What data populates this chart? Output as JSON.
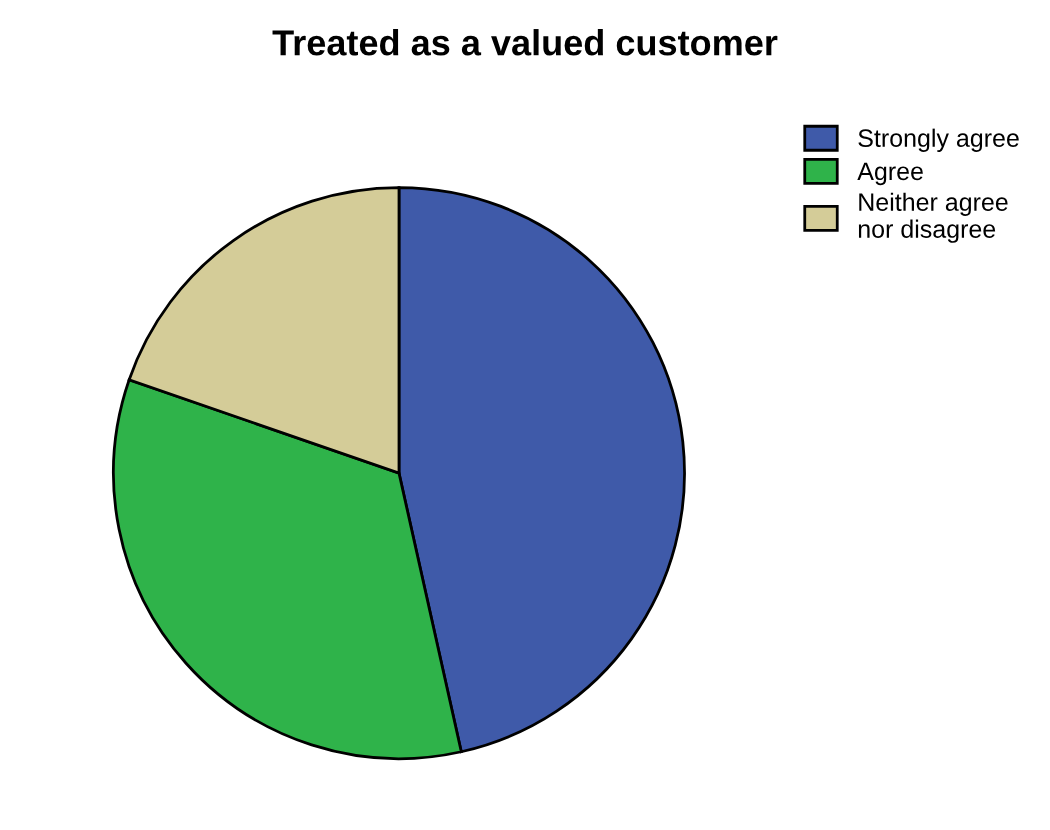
{
  "chart_data": {
    "type": "pie",
    "title": "Treated as a valued customer",
    "categories": [
      "Strongly agree",
      "Agree",
      "Neither agree\nnor disagree"
    ],
    "values": [
      46.5,
      33.8,
      19.7
    ],
    "colors": [
      "#3f5aa9",
      "#2fb34a",
      "#d4cc98"
    ],
    "legend": "top right"
  }
}
